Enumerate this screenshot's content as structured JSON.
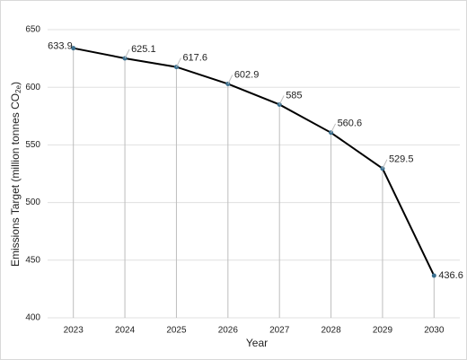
{
  "chart_data": {
    "type": "line",
    "x_label": "Year",
    "y_label": [
      "Emissions Target (million tonnes CO",
      "2e",
      ")"
    ],
    "categories": [
      "2023",
      "2024",
      "2025",
      "2026",
      "2027",
      "2028",
      "2029",
      "2030"
    ],
    "values": [
      633.9,
      625.1,
      617.6,
      602.9,
      585,
      560.6,
      529.5,
      436.6
    ],
    "color": "#000000",
    "marker_color": "#3a6f8f",
    "ylim": [
      400,
      650
    ],
    "yticks": [
      400,
      450,
      500,
      550,
      600,
      650
    ],
    "grid": true,
    "drop_lines": true
  }
}
